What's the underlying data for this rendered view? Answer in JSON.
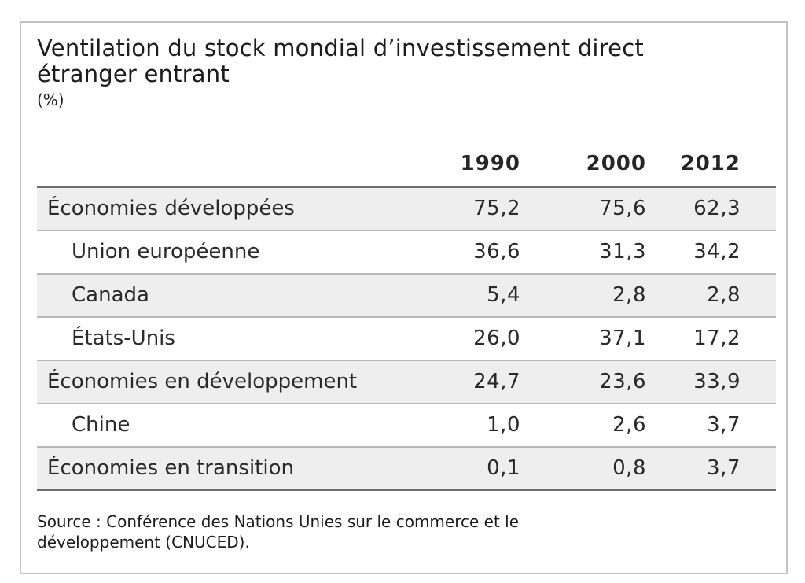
{
  "figure": {
    "title": "Ventilation du stock mondial d’investissement direct étranger entrant",
    "unit": "(%)",
    "source": "Source : Conférence des Nations Unies sur le commerce et le développement (CNUCED)."
  },
  "chart_data": {
    "type": "table",
    "title": "Ventilation du stock mondial d’investissement direct étranger entrant (%)",
    "columns": [
      "1990",
      "2000",
      "2012"
    ],
    "rows": [
      {
        "label": "Économies développées",
        "indent": false,
        "values": [
          "75,2",
          "75,6",
          "62,3"
        ]
      },
      {
        "label": "Union européenne",
        "indent": true,
        "values": [
          "36,6",
          "31,3",
          "34,2"
        ]
      },
      {
        "label": "Canada",
        "indent": true,
        "values": [
          "5,4",
          "2,8",
          "2,8"
        ]
      },
      {
        "label": "États-Unis",
        "indent": true,
        "values": [
          "26,0",
          "37,1",
          "17,2"
        ]
      },
      {
        "label": "Économies en développement",
        "indent": false,
        "values": [
          "24,7",
          "23,6",
          "33,9"
        ]
      },
      {
        "label": "Chine",
        "indent": true,
        "values": [
          "1,0",
          "2,6",
          "3,7"
        ]
      },
      {
        "label": "Économies en transition",
        "indent": false,
        "values": [
          "0,1",
          "0,8",
          "3,7"
        ]
      }
    ],
    "source": "Source : Conférence des Nations Unies sur le commerce et le développement (CNUCED)."
  },
  "colors": {
    "row_stripe": "#eeeeee",
    "rule_light": "#b8b8b8",
    "rule_dark": "#6e6e6e",
    "card_border": "#c2c2c2",
    "text": "#1f1f1f"
  }
}
